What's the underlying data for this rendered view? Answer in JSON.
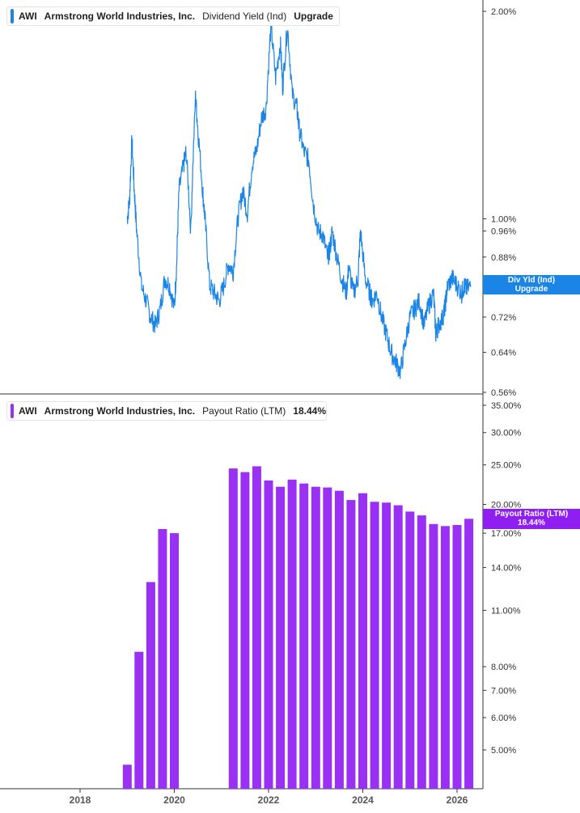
{
  "top_panel": {
    "ticker": "AWI",
    "company": "Armstrong World Industries, Inc.",
    "metric": "Dividend Yield (Ind)",
    "value": "Upgrade",
    "flag_line1": "Div Yld (Ind)",
    "flag_line2": "Upgrade",
    "y_ticks": [
      "2.00%",
      "1.00%",
      "0.96%",
      "0.88%",
      "0.72%",
      "0.64%",
      "0.56%"
    ]
  },
  "bottom_panel": {
    "ticker": "AWI",
    "company": "Armstrong World Industries, Inc.",
    "metric": "Payout Ratio (LTM)",
    "value": "18.44%",
    "flag_line1": "Payout Ratio (LTM)",
    "flag_line2": "18.44%",
    "y_ticks": [
      "35.00%",
      "30.00%",
      "25.00%",
      "20.00%",
      "17.00%",
      "14.00%",
      "11.00%",
      "8.00%",
      "7.00%",
      "6.00%",
      "5.00%"
    ]
  },
  "x_axis": {
    "ticks": [
      "2018",
      "2020",
      "2022",
      "2024",
      "2026"
    ]
  },
  "colors": {
    "line": "#1a85e6",
    "bars": "#9b30f5",
    "flag_top": "#1a85e6",
    "flag_bottom": "#8f1ff0",
    "grid": "#dddddd"
  },
  "chart_data": [
    {
      "type": "line",
      "title": "AWI Armstrong World Industries, Inc. Dividend Yield (Ind)",
      "series": [
        {
          "name": "Div Yld (Ind)",
          "x": [
            2019.0,
            2019.05,
            2019.1,
            2019.15,
            2019.2,
            2019.3,
            2019.4,
            2019.5,
            2019.6,
            2019.7,
            2019.8,
            2019.9,
            2020.0,
            2020.05,
            2020.1,
            2020.2,
            2020.25,
            2020.35,
            2020.45,
            2020.5,
            2020.6,
            2020.65,
            2020.75,
            2020.85,
            2020.95,
            2021.05,
            2021.15,
            2021.25,
            2021.35,
            2021.45,
            2021.55,
            2021.65,
            2021.75,
            2021.85,
            2021.95,
            2022.05,
            2022.15,
            2022.25,
            2022.3,
            2022.4,
            2022.5,
            2022.6,
            2022.65,
            2022.75,
            2022.85,
            2022.95,
            2023.05,
            2023.15,
            2023.25,
            2023.3,
            2023.35,
            2023.45,
            2023.55,
            2023.65,
            2023.7,
            2023.8,
            2023.9,
            2023.95,
            2024.05,
            2024.15,
            2024.2,
            2024.3,
            2024.4,
            2024.5,
            2024.6,
            2024.7,
            2024.8,
            2024.9,
            2025.0,
            2025.1,
            2025.2,
            2025.3,
            2025.4,
            2025.5,
            2025.55,
            2025.6,
            2025.7,
            2025.75,
            2025.8,
            2025.9,
            2026.0,
            2026.1,
            2026.15,
            2026.2,
            2026.3
          ],
          "y": [
            1.0,
            1.06,
            1.3,
            1.1,
            0.96,
            0.8,
            0.76,
            0.72,
            0.7,
            0.74,
            0.82,
            0.8,
            0.74,
            0.86,
            1.1,
            1.2,
            1.25,
            0.96,
            1.5,
            1.35,
            1.1,
            1.0,
            0.8,
            0.78,
            0.76,
            0.8,
            0.86,
            0.84,
            1.0,
            1.1,
            1.02,
            1.2,
            1.26,
            1.4,
            1.45,
            1.9,
            1.6,
            1.8,
            1.55,
            1.9,
            1.52,
            1.45,
            1.35,
            1.25,
            1.22,
            1.05,
            0.96,
            0.95,
            0.88,
            0.9,
            0.96,
            0.88,
            0.82,
            0.78,
            0.85,
            0.78,
            0.82,
            0.96,
            0.82,
            0.78,
            0.76,
            0.78,
            0.72,
            0.68,
            0.64,
            0.62,
            0.6,
            0.66,
            0.72,
            0.74,
            0.76,
            0.7,
            0.75,
            0.78,
            0.68,
            0.7,
            0.72,
            0.75,
            0.8,
            0.82,
            0.8,
            0.78,
            0.8,
            0.79,
            0.8
          ]
        }
      ],
      "ylabel": "",
      "y_scale": "log",
      "ylim": [
        0.56,
        2.0
      ]
    },
    {
      "type": "bar",
      "title": "AWI Armstrong World Industries, Inc. Payout Ratio (LTM)",
      "series": [
        {
          "name": "Payout Ratio (LTM)",
          "x": [
            2019.0,
            2019.25,
            2019.5,
            2019.75,
            2020.0,
            2021.25,
            2021.5,
            2021.75,
            2022.0,
            2022.25,
            2022.5,
            2022.75,
            2023.0,
            2023.25,
            2023.5,
            2023.75,
            2024.0,
            2024.25,
            2024.5,
            2024.75,
            2025.0,
            2025.25,
            2025.5,
            2025.75,
            2026.0,
            2026.25
          ],
          "values": [
            4.6,
            8.7,
            12.9,
            17.4,
            17.0,
            24.5,
            24.0,
            24.8,
            22.9,
            22.1,
            23.0,
            22.5,
            22.1,
            22.0,
            21.6,
            20.5,
            21.3,
            20.3,
            20.2,
            19.9,
            19.2,
            18.8,
            17.9,
            17.7,
            17.8,
            18.44
          ]
        }
      ],
      "ylabel": "",
      "y_scale": "log",
      "ylim": [
        4.2,
        35.0
      ]
    }
  ]
}
